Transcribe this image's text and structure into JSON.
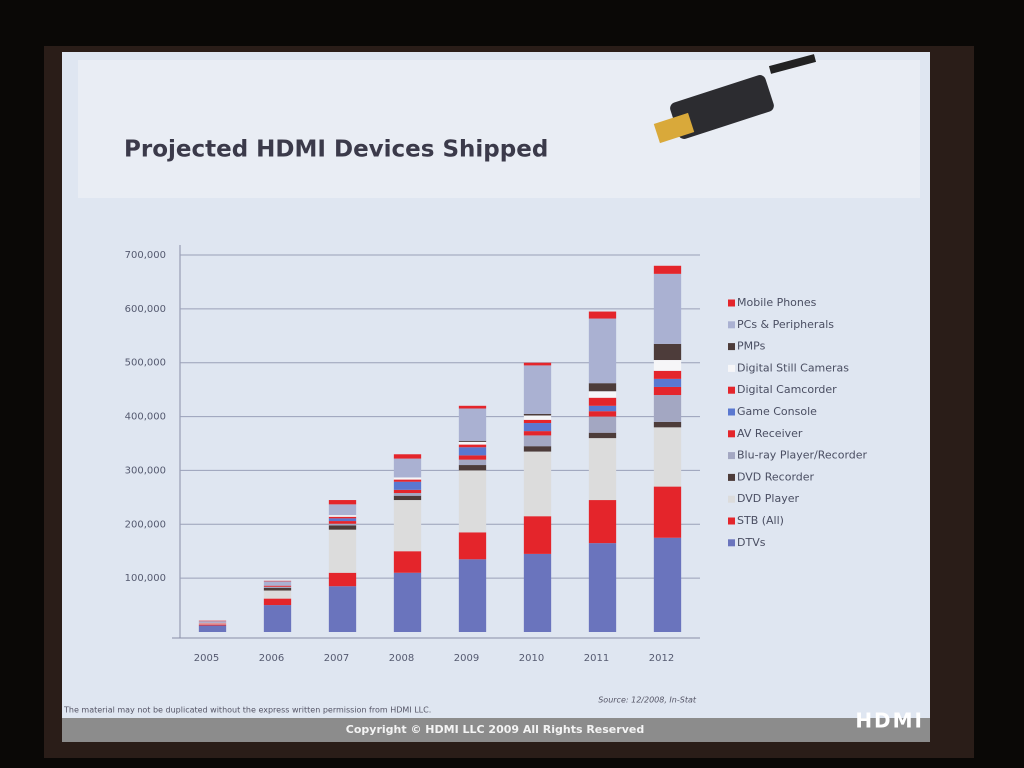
{
  "chart_data": {
    "type": "stacked-bar",
    "title": "Projected HDMI Devices Shipped",
    "categories": [
      "2005",
      "2006",
      "2007",
      "2008",
      "2009",
      "2010",
      "2011",
      "2012"
    ],
    "series": [
      {
        "name": "DTVs",
        "color": "#6a74bd",
        "values": [
          12000,
          50000,
          85000,
          110000,
          135000,
          145000,
          165000,
          175000
        ]
      },
      {
        "name": "STB (All)",
        "color": "#e4252b",
        "values": [
          2000,
          12000,
          25000,
          40000,
          50000,
          70000,
          80000,
          95000
        ]
      },
      {
        "name": "DVD Player",
        "color": "#dcdcdc",
        "values": [
          2000,
          15000,
          80000,
          95000,
          115000,
          120000,
          115000,
          110000
        ]
      },
      {
        "name": "DVD Recorder",
        "color": "#4d3c3a",
        "values": [
          0,
          5000,
          8000,
          8000,
          10000,
          10000,
          10000,
          10000
        ]
      },
      {
        "name": "Blu-ray Player/Recorder",
        "color": "#a3a7c2",
        "values": [
          0,
          2000,
          3000,
          5000,
          10000,
          20000,
          30000,
          50000
        ]
      },
      {
        "name": "AV Receiver",
        "color": "#e4252b",
        "values": [
          1000,
          2000,
          5000,
          6000,
          8000,
          8000,
          10000,
          15000
        ]
      },
      {
        "name": "Game Console",
        "color": "#5a78d0",
        "values": [
          0,
          0,
          5000,
          15000,
          15000,
          15000,
          10000,
          15000
        ]
      },
      {
        "name": "Digital Camcorder",
        "color": "#e4252b",
        "values": [
          0,
          0,
          3000,
          4000,
          5000,
          6000,
          15000,
          15000
        ]
      },
      {
        "name": "Digital Still Cameras",
        "color": "#f6f6f8",
        "values": [
          0,
          0,
          3000,
          4000,
          5000,
          8000,
          12000,
          20000
        ]
      },
      {
        "name": "PMPs",
        "color": "#4d3c3a",
        "values": [
          0,
          0,
          0,
          0,
          2000,
          3000,
          15000,
          30000
        ]
      },
      {
        "name": "PCs & Peripherals",
        "color": "#aab1d2",
        "values": [
          3000,
          8000,
          20000,
          35000,
          60000,
          90000,
          120000,
          130000
        ]
      },
      {
        "name": "Mobile Phones",
        "color": "#e4252b",
        "values": [
          1000,
          1000,
          8000,
          8000,
          5000,
          5000,
          13000,
          15000
        ]
      }
    ],
    "ylim": [
      0,
      700000
    ],
    "yticks": [
      {
        "value": 100000,
        "label": "100,000"
      },
      {
        "value": 200000,
        "label": "200,000"
      },
      {
        "value": 300000,
        "label": "300,000"
      },
      {
        "value": 400000,
        "label": "400,000"
      },
      {
        "value": 500000,
        "label": "500,000"
      },
      {
        "value": 600000,
        "label": "600,000"
      },
      {
        "value": 700000,
        "label": "700,000"
      }
    ],
    "grid": true,
    "legend": "right",
    "note": "The material may not be duplicated without the express written permission from HDMI LLC.",
    "source": "Source: 12/2008, In-Stat",
    "footer": "Copyright © HDMI LLC 2009  All Rights Reserved",
    "logo": "HDMI"
  }
}
